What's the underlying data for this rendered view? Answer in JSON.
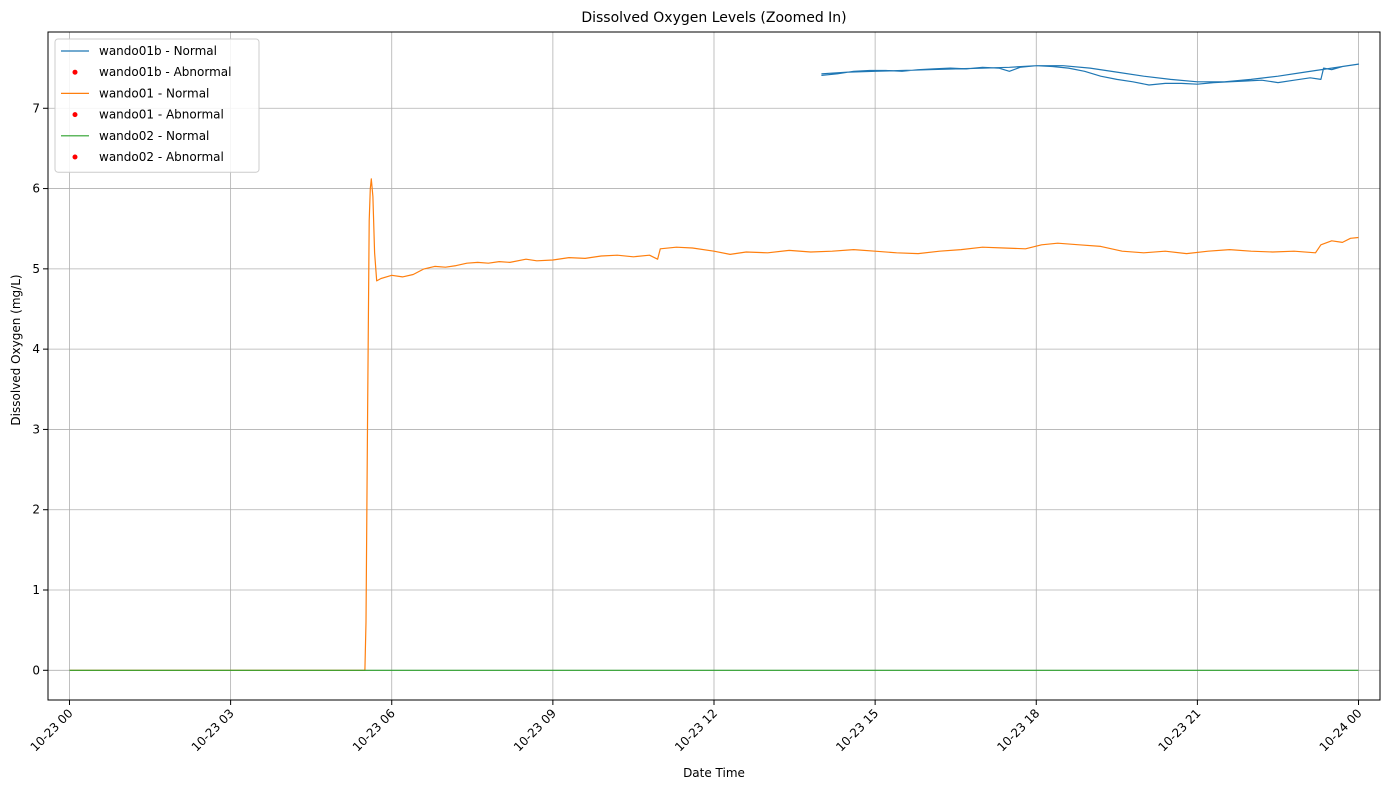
{
  "chart_data": {
    "type": "line",
    "title": "Dissolved Oxygen Levels (Zoomed In)",
    "xlabel": "Date Time",
    "ylabel": "Dissolved Oxygen (mg/L)",
    "x_unit": "hours",
    "xlim": [
      -0.4,
      24.4
    ],
    "ylim": [
      -0.37,
      7.95
    ],
    "xticks": [
      {
        "value": 0,
        "label": "10-23 00"
      },
      {
        "value": 3,
        "label": "10-23 03"
      },
      {
        "value": 6,
        "label": "10-23 06"
      },
      {
        "value": 9,
        "label": "10-23 09"
      },
      {
        "value": 12,
        "label": "10-23 12"
      },
      {
        "value": 15,
        "label": "10-23 15"
      },
      {
        "value": 18,
        "label": "10-23 18"
      },
      {
        "value": 21,
        "label": "10-23 21"
      },
      {
        "value": 24,
        "label": "10-24 00"
      }
    ],
    "yticks": [
      {
        "value": 0,
        "label": "0"
      },
      {
        "value": 1,
        "label": "1"
      },
      {
        "value": 2,
        "label": "2"
      },
      {
        "value": 3,
        "label": "3"
      },
      {
        "value": 4,
        "label": "4"
      },
      {
        "value": 5,
        "label": "5"
      },
      {
        "value": 6,
        "label": "6"
      },
      {
        "value": 7,
        "label": "7"
      }
    ],
    "grid": true,
    "legend_position": "upper-left",
    "series": [
      {
        "name": "wando01b - Normal",
        "kind": "line",
        "color": "#1f77b4",
        "points": [
          [
            14.0,
            7.41
          ],
          [
            14.3,
            7.43
          ],
          [
            14.6,
            7.46
          ],
          [
            14.9,
            7.47
          ],
          [
            15.2,
            7.47
          ],
          [
            15.5,
            7.46
          ],
          [
            15.8,
            7.48
          ],
          [
            16.1,
            7.49
          ],
          [
            16.4,
            7.5
          ],
          [
            16.7,
            7.49
          ],
          [
            17.0,
            7.51
          ],
          [
            17.3,
            7.5
          ],
          [
            17.5,
            7.46
          ],
          [
            17.7,
            7.51
          ],
          [
            18.0,
            7.53
          ],
          [
            18.3,
            7.52
          ],
          [
            18.6,
            7.5
          ],
          [
            18.9,
            7.46
          ],
          [
            19.2,
            7.4
          ],
          [
            19.5,
            7.36
          ],
          [
            19.8,
            7.33
          ],
          [
            20.1,
            7.29
          ],
          [
            20.4,
            7.31
          ],
          [
            20.7,
            7.31
          ],
          [
            21.0,
            7.3
          ],
          [
            21.3,
            7.32
          ],
          [
            21.6,
            7.33
          ],
          [
            21.9,
            7.34
          ],
          [
            22.2,
            7.35
          ],
          [
            22.5,
            7.32
          ],
          [
            22.8,
            7.35
          ],
          [
            23.1,
            7.38
          ],
          [
            23.3,
            7.36
          ],
          [
            23.35,
            7.5
          ],
          [
            23.5,
            7.48
          ],
          [
            23.7,
            7.52
          ],
          [
            24.0,
            7.55
          ],
          [
            23.8,
            7.53
          ],
          [
            23.5,
            7.5
          ],
          [
            23.0,
            7.45
          ],
          [
            22.5,
            7.4
          ],
          [
            22.0,
            7.36
          ],
          [
            21.5,
            7.33
          ],
          [
            21.0,
            7.33
          ],
          [
            20.5,
            7.36
          ],
          [
            20.0,
            7.4
          ],
          [
            19.5,
            7.45
          ],
          [
            19.0,
            7.5
          ],
          [
            18.5,
            7.53
          ],
          [
            18.0,
            7.53
          ],
          [
            17.5,
            7.51
          ],
          [
            17.0,
            7.5
          ],
          [
            16.5,
            7.49
          ],
          [
            16.0,
            7.48
          ],
          [
            15.5,
            7.47
          ],
          [
            15.0,
            7.46
          ],
          [
            14.5,
            7.45
          ],
          [
            14.0,
            7.43
          ]
        ]
      },
      {
        "name": "wando01b - Abnormal",
        "kind": "scatter",
        "color": "#ff0000",
        "points": []
      },
      {
        "name": "wando01 - Normal",
        "kind": "line",
        "color": "#ff7f0e",
        "points": [
          [
            0,
            0
          ],
          [
            5.5,
            0
          ],
          [
            5.52,
            0.6
          ],
          [
            5.55,
            3.2
          ],
          [
            5.58,
            5.6
          ],
          [
            5.6,
            6.0
          ],
          [
            5.62,
            6.12
          ],
          [
            5.65,
            5.9
          ],
          [
            5.68,
            5.2
          ],
          [
            5.72,
            4.85
          ],
          [
            5.8,
            4.88
          ],
          [
            6.0,
            4.92
          ],
          [
            6.2,
            4.9
          ],
          [
            6.4,
            4.93
          ],
          [
            6.6,
            5.0
          ],
          [
            6.8,
            5.03
          ],
          [
            7.0,
            5.02
          ],
          [
            7.2,
            5.04
          ],
          [
            7.4,
            5.07
          ],
          [
            7.6,
            5.08
          ],
          [
            7.8,
            5.07
          ],
          [
            8.0,
            5.09
          ],
          [
            8.2,
            5.08
          ],
          [
            8.5,
            5.12
          ],
          [
            8.7,
            5.1
          ],
          [
            9.0,
            5.11
          ],
          [
            9.3,
            5.14
          ],
          [
            9.6,
            5.13
          ],
          [
            9.9,
            5.16
          ],
          [
            10.2,
            5.17
          ],
          [
            10.5,
            5.15
          ],
          [
            10.8,
            5.17
          ],
          [
            10.95,
            5.12
          ],
          [
            11.0,
            5.25
          ],
          [
            11.3,
            5.27
          ],
          [
            11.6,
            5.26
          ],
          [
            12.0,
            5.22
          ],
          [
            12.3,
            5.18
          ],
          [
            12.6,
            5.21
          ],
          [
            13.0,
            5.2
          ],
          [
            13.4,
            5.23
          ],
          [
            13.8,
            5.21
          ],
          [
            14.2,
            5.22
          ],
          [
            14.6,
            5.24
          ],
          [
            15.0,
            5.22
          ],
          [
            15.4,
            5.2
          ],
          [
            15.8,
            5.19
          ],
          [
            16.2,
            5.22
          ],
          [
            16.6,
            5.24
          ],
          [
            17.0,
            5.27
          ],
          [
            17.4,
            5.26
          ],
          [
            17.8,
            5.25
          ],
          [
            18.1,
            5.3
          ],
          [
            18.4,
            5.32
          ],
          [
            18.8,
            5.3
          ],
          [
            19.2,
            5.28
          ],
          [
            19.6,
            5.22
          ],
          [
            20.0,
            5.2
          ],
          [
            20.4,
            5.22
          ],
          [
            20.8,
            5.19
          ],
          [
            21.2,
            5.22
          ],
          [
            21.6,
            5.24
          ],
          [
            22.0,
            5.22
          ],
          [
            22.4,
            5.21
          ],
          [
            22.8,
            5.22
          ],
          [
            23.2,
            5.2
          ],
          [
            23.3,
            5.3
          ],
          [
            23.5,
            5.35
          ],
          [
            23.7,
            5.33
          ],
          [
            23.85,
            5.38
          ],
          [
            24.0,
            5.39
          ]
        ]
      },
      {
        "name": "wando01 - Abnormal",
        "kind": "scatter",
        "color": "#ff0000",
        "points": []
      },
      {
        "name": "wando02 - Normal",
        "kind": "line",
        "color": "#2ca02c",
        "points": [
          [
            0,
            0.0
          ],
          [
            24,
            0.0
          ]
        ]
      },
      {
        "name": "wando02 - Abnormal",
        "kind": "scatter",
        "color": "#ff0000",
        "points": []
      }
    ]
  }
}
